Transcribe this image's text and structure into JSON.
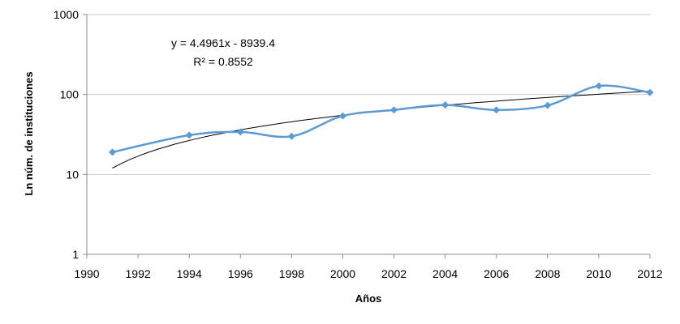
{
  "chart_data": {
    "type": "line",
    "xlabel": "Años",
    "ylabel": "Ln núm. de instituciones",
    "x_ticks": [
      "1990",
      "1992",
      "1994",
      "1996",
      "1998",
      "2000",
      "2002",
      "2004",
      "2006",
      "2008",
      "2010",
      "2012"
    ],
    "y_ticks": [
      "1",
      "10",
      "100",
      "1000"
    ],
    "xlim": [
      1990,
      2012
    ],
    "ylim": [
      1,
      1000
    ],
    "y_scale": "log",
    "grid": "horizontal",
    "legend": "none",
    "series": [
      {
        "x": [
          1991,
          1994,
          1996,
          1998,
          2000,
          2002,
          2004,
          2006,
          2008,
          2010,
          2012
        ],
        "values": [
          19,
          31,
          34,
          30,
          54,
          64,
          74,
          64,
          73,
          128,
          106
        ],
        "color": "#5b9bd5",
        "marker": "diamond",
        "smoothed": true
      }
    ],
    "trendline": {
      "color": "#000000",
      "equation": "y = 4.4961x - 8939.4",
      "r_squared": "R² = 0.8552",
      "x_range": [
        1991,
        2012
      ],
      "y_range": [
        12,
        110
      ]
    }
  }
}
